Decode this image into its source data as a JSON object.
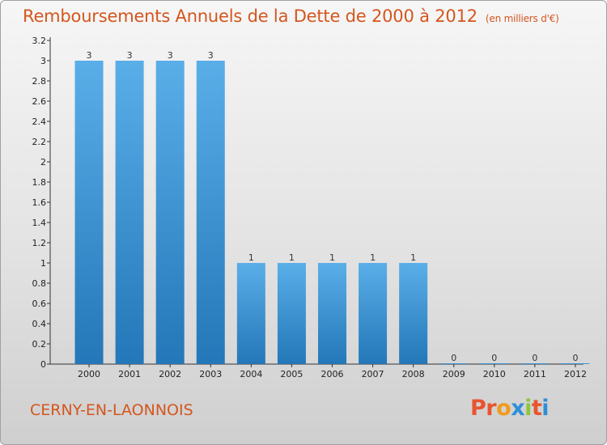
{
  "header": {
    "title": "Remboursements Annuels de la Dette de 2000 à 2012",
    "unit": "(en milliers d'€)"
  },
  "footer": {
    "place": "CERNY-EN-LAONNOIS",
    "logo": "Proxiti"
  },
  "colors": {
    "title": "#d4561e",
    "bar_top": "#5aaee8",
    "bar_bottom": "#2477b8",
    "logo_letters": [
      "#e8542f",
      "#e8542f",
      "#f29a1b",
      "#2f8fd8",
      "#8cc63f",
      "#e8542f",
      "#2f8fd8"
    ]
  },
  "chart_data": {
    "type": "bar",
    "title": "Remboursements Annuels de la Dette de 2000 à 2012",
    "subtitle": "(en milliers d'€)",
    "xlabel": "",
    "ylabel": "",
    "categories": [
      "2000",
      "2001",
      "2002",
      "2003",
      "2004",
      "2005",
      "2006",
      "2007",
      "2008",
      "2009",
      "2010",
      "2011",
      "2012"
    ],
    "values": [
      3,
      3,
      3,
      3,
      1,
      1,
      1,
      1,
      1,
      0,
      0,
      0,
      0
    ],
    "data_labels": [
      "3",
      "3",
      "3",
      "3",
      "1",
      "1",
      "1",
      "1",
      "1",
      "0",
      "0",
      "0",
      "0"
    ],
    "y_ticks": [
      {
        "value": 0,
        "label": "0"
      },
      {
        "value": 0.2,
        "label": "0.2"
      },
      {
        "value": 0.4,
        "label": "0.4"
      },
      {
        "value": 0.6,
        "label": "0.6"
      },
      {
        "value": 0.8,
        "label": "0.8"
      },
      {
        "value": 1,
        "label": "1"
      },
      {
        "value": 1.2,
        "label": "1.2"
      },
      {
        "value": 1.4,
        "label": "1.4"
      },
      {
        "value": 1.6,
        "label": "1.6"
      },
      {
        "value": 1.8,
        "label": "1.8"
      },
      {
        "value": 2,
        "label": "2"
      },
      {
        "value": 2.2,
        "label": "2.2"
      },
      {
        "value": 2.4,
        "label": "2.4"
      },
      {
        "value": 2.6,
        "label": "2.6"
      },
      {
        "value": 2.8,
        "label": "2.8"
      },
      {
        "value": 3,
        "label": "3"
      },
      {
        "value": 3.2,
        "label": "3.2"
      }
    ],
    "ylim": [
      0,
      3.2
    ],
    "grid": false,
    "legend": "none"
  }
}
